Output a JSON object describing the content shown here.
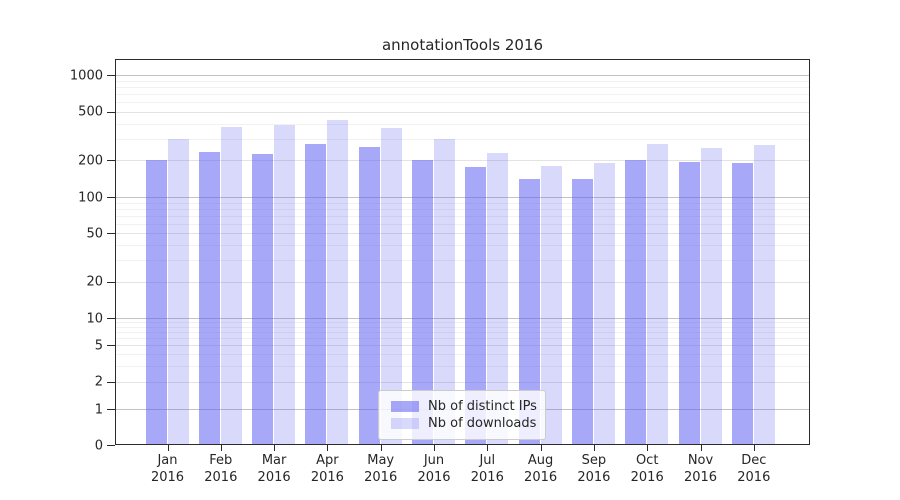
{
  "chart_data": {
    "type": "bar",
    "title": "annotationTools 2016",
    "categories": [
      "Jan 2016",
      "Feb 2016",
      "Mar 2016",
      "Apr 2016",
      "May 2016",
      "Jun 2016",
      "Jul 2016",
      "Aug 2016",
      "Sep 2016",
      "Oct 2016",
      "Nov 2016",
      "Dec 2016"
    ],
    "series": [
      {
        "name": "Nb of distinct IPs",
        "color": "#5a5af2",
        "alpha": 0.53,
        "effective_color": "#a8a8f8",
        "values": [
          200,
          235,
          225,
          270,
          255,
          200,
          175,
          140,
          140,
          200,
          195,
          190
        ]
      },
      {
        "name": "Nb of downloads",
        "color": "#5a5af2",
        "alpha": 0.23,
        "effective_color": "#d9d9fa",
        "values": [
          300,
          375,
          390,
          430,
          370,
          300,
          230,
          180,
          190,
          270,
          250,
          265
        ]
      }
    ],
    "xlabel": "",
    "ylabel": "",
    "yscale": "symlog",
    "yticks": [
      0,
      1,
      2,
      5,
      10,
      20,
      50,
      100,
      200,
      500,
      1000
    ],
    "minor_grid_multiples": [
      3,
      4,
      6,
      7,
      8,
      9
    ],
    "ylim": [
      0,
      1300
    ],
    "grid": "horizontal",
    "legend_position": "lower-center",
    "grid_colors": {
      "decade": "#c3c3c3",
      "labeled": "#e3e3e3",
      "minor": "#f1f1f1"
    }
  }
}
